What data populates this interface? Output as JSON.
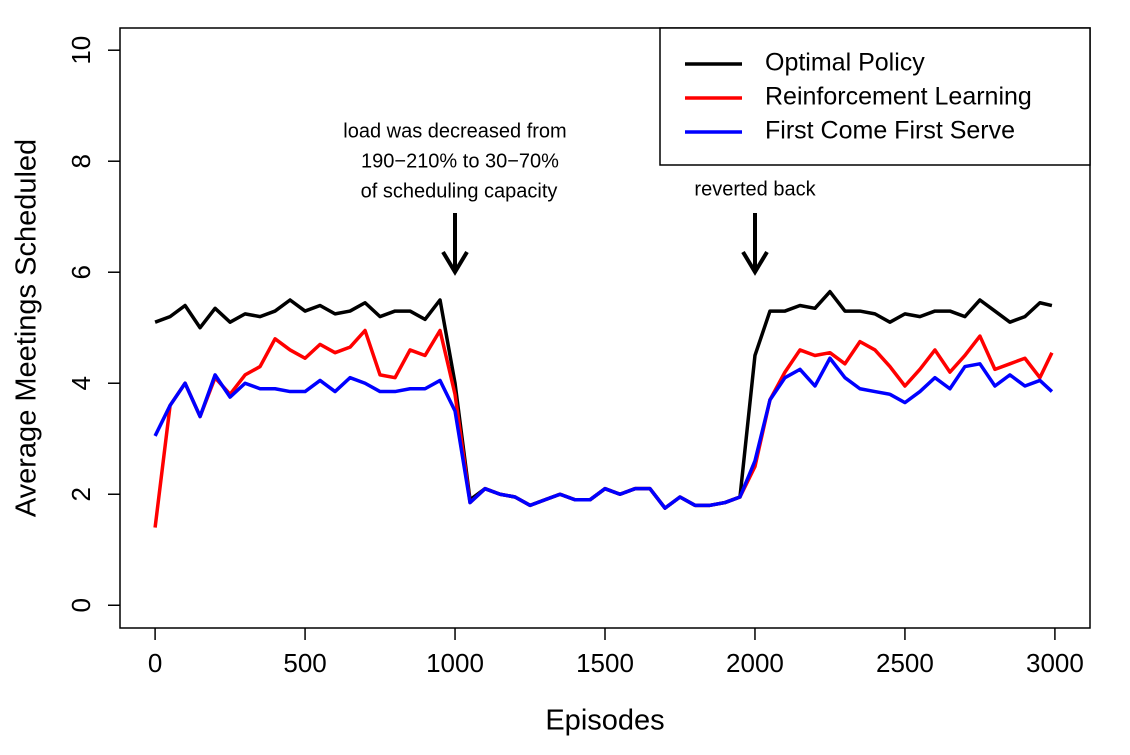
{
  "chart_data": {
    "type": "line",
    "x_label": "Episodes",
    "y_label": "Average Meetings Scheduled",
    "x": [
      0,
      50,
      100,
      150,
      200,
      250,
      300,
      350,
      400,
      450,
      500,
      550,
      600,
      650,
      700,
      750,
      800,
      850,
      900,
      950,
      1000,
      1050,
      1100,
      1150,
      1200,
      1250,
      1300,
      1350,
      1400,
      1450,
      1500,
      1550,
      1600,
      1650,
      1700,
      1750,
      1800,
      1850,
      1900,
      1950,
      2000,
      2050,
      2100,
      2150,
      2200,
      2250,
      2300,
      2350,
      2400,
      2450,
      2500,
      2550,
      2600,
      2650,
      2700,
      2750,
      2800,
      2850,
      2900,
      2950,
      2990
    ],
    "series": [
      {
        "name": "Optimal Policy",
        "color": "#000000",
        "values": [
          5.1,
          5.2,
          5.4,
          5.0,
          5.35,
          5.1,
          5.25,
          5.2,
          5.3,
          5.5,
          5.3,
          5.4,
          5.25,
          5.3,
          5.45,
          5.2,
          5.3,
          5.3,
          5.15,
          5.5,
          4.0,
          1.9,
          2.1,
          2.0,
          1.95,
          1.8,
          1.9,
          2.0,
          1.9,
          1.9,
          2.1,
          2.0,
          2.1,
          2.1,
          1.75,
          1.95,
          1.8,
          1.8,
          1.85,
          1.95,
          4.5,
          5.3,
          5.3,
          5.4,
          5.35,
          5.65,
          5.3,
          5.3,
          5.25,
          5.1,
          5.25,
          5.2,
          5.3,
          5.3,
          5.2,
          5.5,
          5.3,
          5.1,
          5.2,
          5.45,
          5.4
        ]
      },
      {
        "name": "Reinforcement Learning",
        "color": "#ff0000",
        "values": [
          1.4,
          3.6,
          4.0,
          3.4,
          4.1,
          3.8,
          4.15,
          4.3,
          4.8,
          4.6,
          4.45,
          4.7,
          4.55,
          4.65,
          4.95,
          4.15,
          4.1,
          4.6,
          4.5,
          4.95,
          3.8,
          1.85,
          2.1,
          2.0,
          1.95,
          1.8,
          1.9,
          2.0,
          1.9,
          1.9,
          2.1,
          2.0,
          2.1,
          2.1,
          1.75,
          1.95,
          1.8,
          1.8,
          1.85,
          1.95,
          2.5,
          3.7,
          4.2,
          4.6,
          4.5,
          4.55,
          4.35,
          4.75,
          4.6,
          4.3,
          3.95,
          4.25,
          4.6,
          4.2,
          4.5,
          4.85,
          4.25,
          4.35,
          4.45,
          4.1,
          4.55
        ]
      },
      {
        "name": "First Come First Serve",
        "color": "#0000ff",
        "values": [
          3.05,
          3.6,
          4.0,
          3.4,
          4.15,
          3.75,
          4.0,
          3.9,
          3.9,
          3.85,
          3.85,
          4.05,
          3.85,
          4.1,
          4.0,
          3.85,
          3.85,
          3.9,
          3.9,
          4.05,
          3.5,
          1.85,
          2.1,
          2.0,
          1.95,
          1.8,
          1.9,
          2.0,
          1.9,
          1.9,
          2.1,
          2.0,
          2.1,
          2.1,
          1.75,
          1.95,
          1.8,
          1.8,
          1.85,
          1.95,
          2.6,
          3.7,
          4.1,
          4.25,
          3.95,
          4.45,
          4.1,
          3.9,
          3.85,
          3.8,
          3.65,
          3.85,
          4.1,
          3.9,
          4.3,
          4.35,
          3.95,
          4.15,
          3.95,
          4.05,
          3.85
        ]
      }
    ],
    "xlim": [
      -117,
      3117
    ],
    "ylim": [
      -0.41,
      10.4
    ],
    "xticks": [
      0,
      500,
      1000,
      1500,
      2000,
      2500,
      3000
    ],
    "yticks": [
      0,
      2,
      4,
      6,
      8,
      10
    ],
    "legend": "top-right",
    "annotations": [
      [
        "load was decreased from",
        "190−210% to 30−70%",
        "of scheduling capacity"
      ],
      [
        "reverted back"
      ]
    ]
  }
}
